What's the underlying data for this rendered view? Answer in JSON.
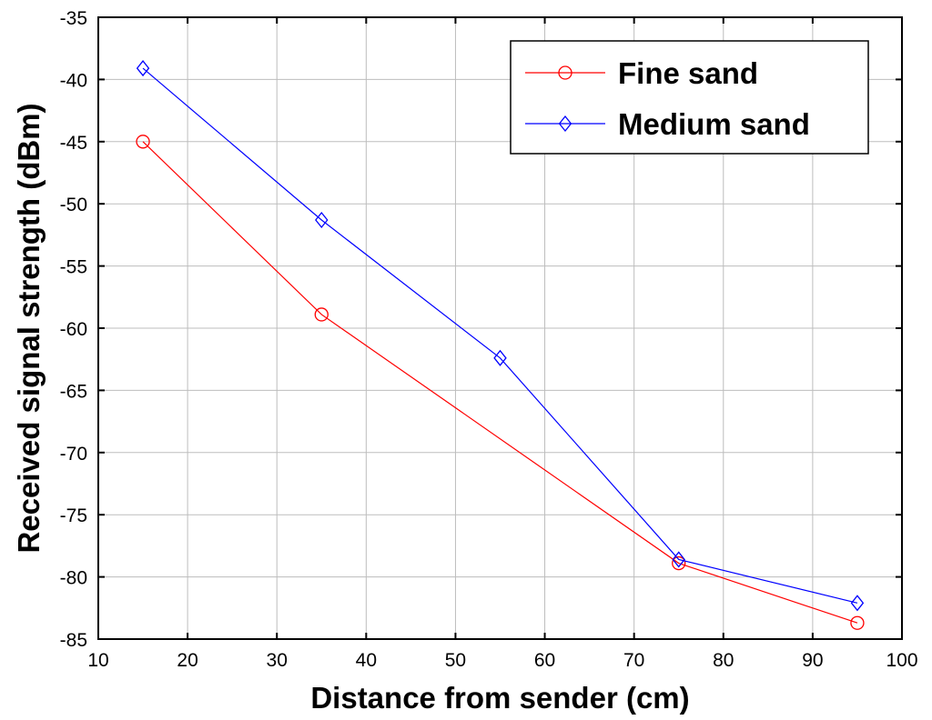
{
  "chart_data": {
    "type": "line",
    "title": "",
    "xlabel": "Distance from sender (cm)",
    "ylabel": "Received signal strength (dBm)",
    "xlim": [
      10,
      100
    ],
    "ylim": [
      -85,
      -35
    ],
    "xticks": [
      10,
      20,
      30,
      40,
      50,
      60,
      70,
      80,
      90,
      100
    ],
    "yticks": [
      -35,
      -40,
      -45,
      -50,
      -55,
      -60,
      -65,
      -70,
      -75,
      -80,
      -85
    ],
    "grid": true,
    "legend_position": "top-right",
    "series": [
      {
        "name": "Fine sand",
        "color": "#ff0000",
        "marker": "circle",
        "x": [
          15,
          35,
          75,
          95
        ],
        "y": [
          -45,
          -58.9,
          -78.9,
          -83.7
        ]
      },
      {
        "name": "Medium sand",
        "color": "#0000ff",
        "marker": "diamond",
        "x": [
          15,
          35,
          55,
          75,
          95
        ],
        "y": [
          -39.1,
          -51.3,
          -62.4,
          -78.6,
          -82.1
        ]
      }
    ]
  }
}
